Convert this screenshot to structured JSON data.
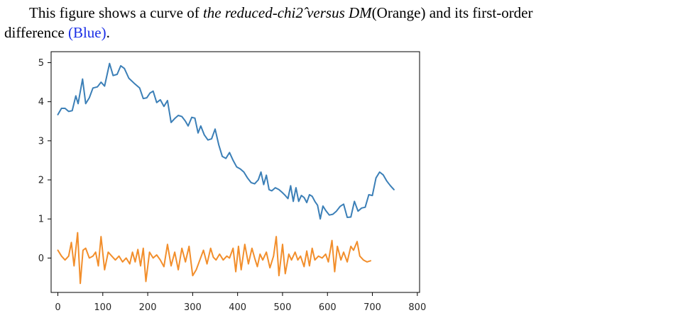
{
  "caption": {
    "line1_a": "This figure shows a curve of ",
    "line1_italic": "the reduced-chi2̂ versus DM",
    "line1_b": "(Orange) and its first-order",
    "line2_a": "difference ",
    "line2_blue": "(Blue)",
    "line2_b": "."
  },
  "chart_data": {
    "type": "line",
    "xlim": [
      -15,
      805
    ],
    "ylim": [
      -0.88,
      5.28
    ],
    "xticks": [
      0,
      100,
      200,
      300,
      400,
      500,
      600,
      700,
      800
    ],
    "yticks": [
      0,
      1,
      2,
      3,
      4,
      5
    ],
    "grid": false,
    "series": [
      {
        "color": "#3b7fb7",
        "points": [
          [
            0,
            3.67
          ],
          [
            8,
            3.83
          ],
          [
            16,
            3.83
          ],
          [
            24,
            3.75
          ],
          [
            32,
            3.77
          ],
          [
            40,
            4.15
          ],
          [
            45,
            3.95
          ],
          [
            55,
            4.58
          ],
          [
            62,
            3.95
          ],
          [
            70,
            4.1
          ],
          [
            78,
            4.35
          ],
          [
            88,
            4.38
          ],
          [
            96,
            4.5
          ],
          [
            104,
            4.4
          ],
          [
            115,
            4.98
          ],
          [
            123,
            4.67
          ],
          [
            132,
            4.7
          ],
          [
            140,
            4.92
          ],
          [
            148,
            4.85
          ],
          [
            158,
            4.6
          ],
          [
            170,
            4.47
          ],
          [
            182,
            4.35
          ],
          [
            190,
            4.08
          ],
          [
            198,
            4.1
          ],
          [
            205,
            4.22
          ],
          [
            212,
            4.27
          ],
          [
            220,
            3.98
          ],
          [
            228,
            4.05
          ],
          [
            236,
            3.88
          ],
          [
            244,
            4.03
          ],
          [
            252,
            3.47
          ],
          [
            260,
            3.57
          ],
          [
            268,
            3.65
          ],
          [
            276,
            3.62
          ],
          [
            284,
            3.5
          ],
          [
            290,
            3.38
          ],
          [
            298,
            3.6
          ],
          [
            305,
            3.58
          ],
          [
            312,
            3.2
          ],
          [
            318,
            3.38
          ],
          [
            326,
            3.15
          ],
          [
            334,
            3.02
          ],
          [
            342,
            3.05
          ],
          [
            350,
            3.3
          ],
          [
            358,
            2.9
          ],
          [
            366,
            2.6
          ],
          [
            374,
            2.55
          ],
          [
            382,
            2.7
          ],
          [
            390,
            2.5
          ],
          [
            398,
            2.33
          ],
          [
            406,
            2.28
          ],
          [
            414,
            2.2
          ],
          [
            422,
            2.05
          ],
          [
            430,
            1.93
          ],
          [
            438,
            1.9
          ],
          [
            446,
            2.0
          ],
          [
            452,
            2.2
          ],
          [
            458,
            1.88
          ],
          [
            464,
            2.12
          ],
          [
            470,
            1.75
          ],
          [
            476,
            1.72
          ],
          [
            484,
            1.8
          ],
          [
            492,
            1.75
          ],
          [
            500,
            1.67
          ],
          [
            506,
            1.6
          ],
          [
            512,
            1.52
          ],
          [
            518,
            1.85
          ],
          [
            524,
            1.45
          ],
          [
            530,
            1.8
          ],
          [
            536,
            1.45
          ],
          [
            542,
            1.6
          ],
          [
            548,
            1.55
          ],
          [
            554,
            1.42
          ],
          [
            560,
            1.62
          ],
          [
            566,
            1.58
          ],
          [
            572,
            1.45
          ],
          [
            578,
            1.35
          ],
          [
            584,
            1.0
          ],
          [
            590,
            1.33
          ],
          [
            596,
            1.22
          ],
          [
            604,
            1.1
          ],
          [
            612,
            1.12
          ],
          [
            620,
            1.2
          ],
          [
            628,
            1.32
          ],
          [
            636,
            1.38
          ],
          [
            644,
            1.04
          ],
          [
            652,
            1.05
          ],
          [
            660,
            1.45
          ],
          [
            668,
            1.2
          ],
          [
            676,
            1.28
          ],
          [
            684,
            1.3
          ],
          [
            692,
            1.62
          ],
          [
            700,
            1.6
          ],
          [
            708,
            2.05
          ],
          [
            716,
            2.2
          ],
          [
            724,
            2.13
          ],
          [
            732,
            1.97
          ],
          [
            740,
            1.85
          ],
          [
            748,
            1.75
          ]
        ]
      },
      {
        "color": "#f28e2b",
        "points": [
          [
            0,
            0.2
          ],
          [
            8,
            0.05
          ],
          [
            16,
            -0.05
          ],
          [
            24,
            0.05
          ],
          [
            30,
            0.4
          ],
          [
            36,
            -0.2
          ],
          [
            44,
            0.65
          ],
          [
            50,
            -0.65
          ],
          [
            56,
            0.2
          ],
          [
            62,
            0.25
          ],
          [
            70,
            0.0
          ],
          [
            78,
            0.05
          ],
          [
            84,
            0.15
          ],
          [
            90,
            -0.2
          ],
          [
            96,
            0.55
          ],
          [
            104,
            -0.3
          ],
          [
            112,
            0.15
          ],
          [
            120,
            0.05
          ],
          [
            128,
            -0.05
          ],
          [
            136,
            0.05
          ],
          [
            144,
            -0.1
          ],
          [
            152,
            0.0
          ],
          [
            160,
            -0.15
          ],
          [
            166,
            0.15
          ],
          [
            172,
            -0.1
          ],
          [
            178,
            0.22
          ],
          [
            184,
            -0.2
          ],
          [
            190,
            0.25
          ],
          [
            196,
            -0.6
          ],
          [
            204,
            0.15
          ],
          [
            212,
            0.0
          ],
          [
            220,
            0.08
          ],
          [
            228,
            -0.05
          ],
          [
            236,
            -0.22
          ],
          [
            244,
            0.35
          ],
          [
            252,
            -0.2
          ],
          [
            260,
            0.15
          ],
          [
            268,
            -0.3
          ],
          [
            276,
            0.25
          ],
          [
            284,
            -0.1
          ],
          [
            292,
            0.3
          ],
          [
            300,
            -0.45
          ],
          [
            308,
            -0.3
          ],
          [
            316,
            -0.05
          ],
          [
            324,
            0.2
          ],
          [
            332,
            -0.15
          ],
          [
            340,
            0.25
          ],
          [
            346,
            0.02
          ],
          [
            352,
            -0.05
          ],
          [
            360,
            0.1
          ],
          [
            368,
            -0.05
          ],
          [
            376,
            0.05
          ],
          [
            382,
            0.0
          ],
          [
            390,
            0.25
          ],
          [
            396,
            -0.35
          ],
          [
            402,
            0.3
          ],
          [
            408,
            -0.3
          ],
          [
            416,
            0.35
          ],
          [
            424,
            -0.15
          ],
          [
            432,
            0.25
          ],
          [
            438,
            0.0
          ],
          [
            444,
            -0.22
          ],
          [
            450,
            0.1
          ],
          [
            456,
            -0.05
          ],
          [
            464,
            0.15
          ],
          [
            472,
            -0.25
          ],
          [
            480,
            0.05
          ],
          [
            486,
            0.55
          ],
          [
            492,
            -0.45
          ],
          [
            500,
            0.35
          ],
          [
            506,
            -0.4
          ],
          [
            514,
            0.1
          ],
          [
            520,
            -0.05
          ],
          [
            528,
            0.15
          ],
          [
            534,
            -0.05
          ],
          [
            540,
            0.05
          ],
          [
            548,
            -0.22
          ],
          [
            554,
            0.18
          ],
          [
            560,
            -0.2
          ],
          [
            566,
            0.25
          ],
          [
            572,
            -0.05
          ],
          [
            580,
            0.05
          ],
          [
            588,
            0.0
          ],
          [
            596,
            0.1
          ],
          [
            602,
            -0.1
          ],
          [
            610,
            0.45
          ],
          [
            616,
            -0.35
          ],
          [
            622,
            0.3
          ],
          [
            630,
            -0.05
          ],
          [
            636,
            0.15
          ],
          [
            644,
            -0.1
          ],
          [
            652,
            0.3
          ],
          [
            658,
            0.2
          ],
          [
            666,
            0.42
          ],
          [
            672,
            0.05
          ],
          [
            680,
            -0.05
          ],
          [
            688,
            -0.1
          ],
          [
            696,
            -0.07
          ]
        ]
      }
    ]
  }
}
